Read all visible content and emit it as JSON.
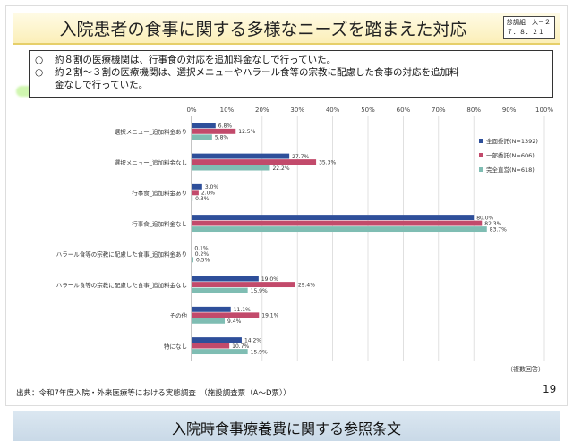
{
  "slide": {
    "title": "入院患者の食事に関する多様なニーズを踏まえた対応",
    "doc_id": {
      "line1": "診調組　入－２",
      "line2": "７．８．２１"
    },
    "summary": [
      {
        "marker": "○",
        "text": "約８割の医療機関は、行事食の対応を追加料金なしで行っていた。"
      },
      {
        "marker": "○",
        "text": "約２割～３割の医療機関は、選択メニューやハラール食等の宗教に配慮した食事の対応を追加料"
      },
      {
        "marker": "",
        "text": "金なしで行っていた。"
      }
    ],
    "note": "（複数回答）",
    "source": "出典：令和7年度入院・外来医療等における実態調査　（施設調査票（A～D票））",
    "page_number": "19",
    "next_title": "入院時食事療養費に関する参照条文"
  },
  "colors": {
    "series": [
      "#2e4f9a",
      "#c24a6b",
      "#7fbdb3"
    ]
  },
  "chart_data": {
    "type": "bar",
    "orientation": "horizontal",
    "x_ticks": [
      "0%",
      "10%",
      "20%",
      "30%",
      "40%",
      "50%",
      "60%",
      "70%",
      "80%",
      "90%",
      "100%"
    ],
    "xlim": [
      0,
      100
    ],
    "grid": true,
    "legend_position": "right",
    "categories": [
      "選択メニュー_追加料金あり",
      "選択メニュー_追加料金なし",
      "行事食_追加料金あり",
      "行事食_追加料金なし",
      "ハラール食等の宗教に配慮した食事_追加料金あり",
      "ハラール食等の宗教に配慮した食事_追加料金なし",
      "その他",
      "特になし"
    ],
    "series": [
      {
        "name": "全面委託(N=1392)",
        "values": [
          6.8,
          27.7,
          3.0,
          80.0,
          0.1,
          19.0,
          11.1,
          14.2
        ],
        "labels": [
          "6.8%",
          "27.7%",
          "3.0%",
          "80.0%",
          "0.1%",
          "19.0%",
          "11.1%",
          "14.2%"
        ]
      },
      {
        "name": "一部委託(N=606)",
        "values": [
          12.5,
          35.3,
          2.0,
          82.3,
          0.2,
          29.4,
          19.1,
          10.7
        ],
        "labels": [
          "12.5%",
          "35.3%",
          "2.0%",
          "82.3%",
          "0.2%",
          "29.4%",
          "19.1%",
          "10.7%"
        ]
      },
      {
        "name": "完全直営(N=618)",
        "values": [
          5.8,
          22.2,
          0.3,
          83.7,
          0.5,
          15.9,
          9.4,
          15.9
        ],
        "labels": [
          "5.8%",
          "22.2%",
          "0.3%",
          "83.7%",
          "0.5%",
          "15.9%",
          "9.4%",
          "15.9%"
        ]
      }
    ]
  }
}
